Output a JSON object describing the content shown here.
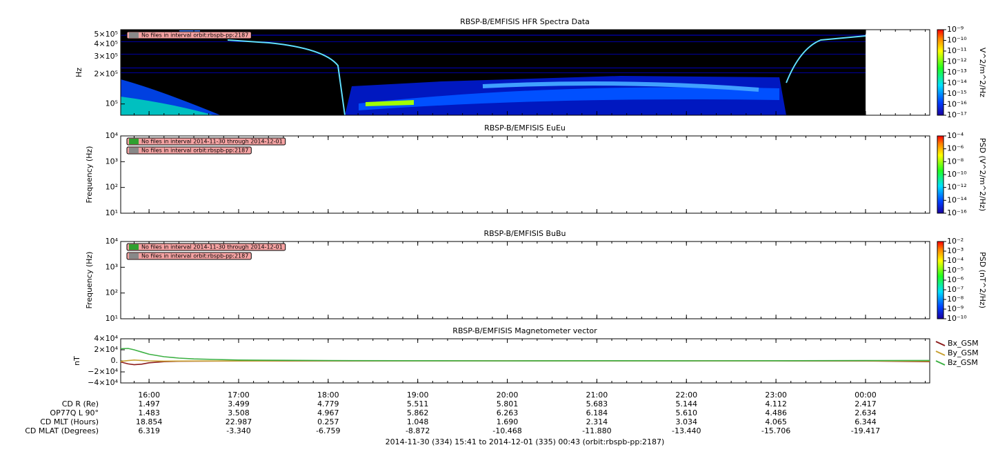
{
  "time_axis": {
    "xlim": [
      "15:41",
      "00:43"
    ],
    "xticks": [
      "16:00",
      "17:00",
      "18:00",
      "19:00",
      "20:00",
      "21:00",
      "22:00",
      "23:00",
      "00:00"
    ]
  },
  "chart_data": [
    {
      "type": "spectrogram",
      "title": "RBSP-B/EMFISIS  HFR Spectra Data",
      "ylabel": "Hz",
      "log": true,
      "ylim": [
        77000,
        560000
      ],
      "yticks": [
        {
          "value": 500000,
          "label": "5×10⁵"
        },
        {
          "value": 400000,
          "label": "4×10⁵"
        },
        {
          "value": 300000,
          "label": "3×10⁵"
        },
        {
          "value": 200000,
          "label": "2×10⁵"
        },
        {
          "value": 100000,
          "label": "10⁵"
        }
      ],
      "zlabel": "V^2/m^2/Hz",
      "zlim": [
        1e-17,
        1e-09
      ],
      "zticks": [
        {
          "value": 1e-09,
          "label": "10⁻⁹"
        },
        {
          "value": 1e-10,
          "label": "10⁻¹⁰"
        },
        {
          "value": 1e-11,
          "label": "10⁻¹¹"
        },
        {
          "value": 1e-12,
          "label": "10⁻¹²"
        },
        {
          "value": 1e-13,
          "label": "10⁻¹³"
        },
        {
          "value": 1e-14,
          "label": "10⁻¹⁴"
        },
        {
          "value": 1e-15,
          "label": "10⁻¹⁵"
        },
        {
          "value": 1e-16,
          "label": "10⁻¹⁶"
        },
        {
          "value": 1e-17,
          "label": "10⁻¹⁷"
        }
      ],
      "notes": [
        "No files in interval orbit:rbspb-pp:2187"
      ]
    },
    {
      "type": "spectrogram",
      "title": "RBSP-B/EMFISIS  EuEu",
      "ylabel": "Frequency (Hz)",
      "log": true,
      "ylim": [
        10,
        10000
      ],
      "yticks": [
        {
          "value": 10000,
          "label": "10⁴"
        },
        {
          "value": 1000,
          "label": "10³"
        },
        {
          "value": 100,
          "label": "10²"
        },
        {
          "value": 10,
          "label": "10¹"
        }
      ],
      "zlabel": "PSD (V^2/m^2/Hz)",
      "zlim": [
        1e-16,
        0.0001
      ],
      "zticks": [
        {
          "value": 0.0001,
          "label": "10⁻⁴"
        },
        {
          "value": 1e-06,
          "label": "10⁻⁶"
        },
        {
          "value": 1e-08,
          "label": "10⁻⁸"
        },
        {
          "value": 1e-10,
          "label": "10⁻¹⁰"
        },
        {
          "value": 1e-12,
          "label": "10⁻¹²"
        },
        {
          "value": 1e-14,
          "label": "10⁻¹⁴"
        },
        {
          "value": 1e-16,
          "label": "10⁻¹⁶"
        }
      ],
      "notes": [
        "No files in interval 2014-11-30 through 2014-12-01",
        "No files in interval orbit:rbspb-pp:2187"
      ]
    },
    {
      "type": "spectrogram",
      "title": "RBSP-B/EMFISIS  BuBu",
      "ylabel": "Frequency (Hz)",
      "log": true,
      "ylim": [
        10,
        10000
      ],
      "yticks": [
        {
          "value": 10000,
          "label": "10⁴"
        },
        {
          "value": 1000,
          "label": "10³"
        },
        {
          "value": 100,
          "label": "10²"
        },
        {
          "value": 10,
          "label": "10¹"
        }
      ],
      "zlabel": "PSD (nT^2/Hz)",
      "zlim": [
        1e-10,
        0.01
      ],
      "zticks": [
        {
          "value": 0.01,
          "label": "10⁻²"
        },
        {
          "value": 0.001,
          "label": "10⁻³"
        },
        {
          "value": 0.0001,
          "label": "10⁻⁴"
        },
        {
          "value": 1e-05,
          "label": "10⁻⁵"
        },
        {
          "value": 1e-06,
          "label": "10⁻⁶"
        },
        {
          "value": 1e-07,
          "label": "10⁻⁷"
        },
        {
          "value": 1e-08,
          "label": "10⁻⁸"
        },
        {
          "value": 1e-09,
          "label": "10⁻⁹"
        },
        {
          "value": 1e-10,
          "label": "10⁻¹⁰"
        }
      ],
      "notes": [
        "No files in interval 2014-11-30 through 2014-12-01",
        "No files in interval orbit:rbspb-pp:2187"
      ]
    },
    {
      "type": "line",
      "title": "RBSP-B/EMFISIS  Magnetometer vector",
      "ylabel": "nT",
      "log": false,
      "ylim": [
        -40000,
        40000
      ],
      "yticks": [
        {
          "value": 40000,
          "label": "4×10⁴"
        },
        {
          "value": 20000,
          "label": "2×10⁴"
        },
        {
          "value": 0,
          "label": "0."
        },
        {
          "value": -20000,
          "label": "−2×10⁴"
        },
        {
          "value": -40000,
          "label": "−4×10⁴"
        }
      ],
      "x": [
        "15:41",
        "15:46",
        "15:50",
        "15:55",
        "16:00",
        "16:10",
        "16:20",
        "16:30",
        "16:45",
        "17:00",
        "17:30",
        "18:00",
        "19:00",
        "20:00",
        "21:00",
        "22:00",
        "23:00",
        "00:00",
        "00:43"
      ],
      "series": [
        {
          "name": "Bx_GSM",
          "color": "#8b1a1a",
          "values": [
            -2000,
            -5500,
            -7000,
            -6000,
            -3500,
            -1500,
            -800,
            -600,
            -400,
            -300,
            -200,
            -100,
            0,
            0,
            0,
            0,
            0,
            -300,
            -1500
          ]
        },
        {
          "name": "By_GSM",
          "color": "#c8a030",
          "values": [
            -1000,
            500,
            1500,
            800,
            0,
            -500,
            -400,
            -300,
            -200,
            -100,
            0,
            0,
            0,
            0,
            0,
            0,
            0,
            0,
            -500
          ]
        },
        {
          "name": "Bz_GSM",
          "color": "#3cb043",
          "values": [
            22000,
            22500,
            20000,
            16000,
            12000,
            7500,
            5000,
            3500,
            2500,
            1500,
            1000,
            500,
            200,
            0,
            200,
            100,
            200,
            500,
            800
          ]
        }
      ]
    }
  ],
  "ephemeris": {
    "rows": [
      {
        "label": "CD R (Re)",
        "values": [
          "1.497",
          "3.499",
          "4.779",
          "5.511",
          "5.801",
          "5.683",
          "5.144",
          "4.112",
          "2.417"
        ]
      },
      {
        "label": "OP77Q L 90°",
        "values": [
          "1.483",
          "3.508",
          "4.967",
          "5.862",
          "6.263",
          "6.184",
          "5.610",
          "4.486",
          "2.634"
        ]
      },
      {
        "label": "CD MLT (Hours)",
        "values": [
          "18.854",
          "22.987",
          "0.257",
          "1.048",
          "1.690",
          "2.314",
          "3.034",
          "4.065",
          "6.344"
        ]
      },
      {
        "label": "CD MLAT (Degrees)",
        "values": [
          "6.319",
          "-3.340",
          "-6.759",
          "-8.872",
          "-10.468",
          "-11.880",
          "-13.440",
          "-15.706",
          "-19.417"
        ]
      }
    ]
  },
  "footer": "2014-11-30 (334) 15:41 to 2014-12-01 (335) 00:43 (orbit:rbspb-pp:2187)"
}
